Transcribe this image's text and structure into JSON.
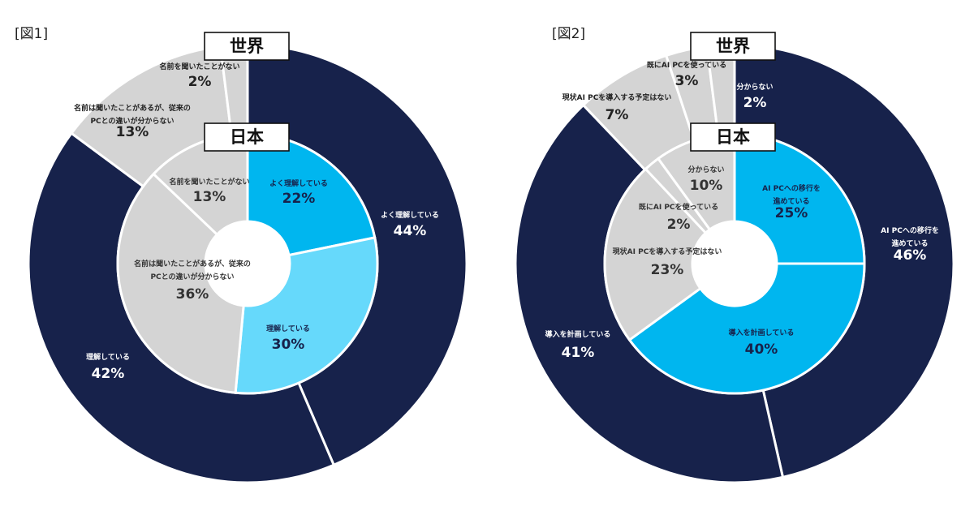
{
  "chart_data": [
    {
      "type": "pie",
      "figure_label": "[図1]",
      "outer_ring_label": "世界",
      "inner_ring_label": "日本",
      "series": [
        {
          "name": "世界",
          "categories": [
            "よく理解している",
            "理解している",
            "名前は聞いたことがあるが、従来のPCとの違いが分からない",
            "名前を聞いたことがない"
          ],
          "values": [
            44,
            42,
            13,
            2
          ],
          "value_labels": [
            "44%",
            "42%",
            "13%",
            "2%"
          ],
          "colors": [
            "#17224b",
            "#17224b",
            "#d4d4d4",
            "#d4d4d4"
          ]
        },
        {
          "name": "日本",
          "categories": [
            "よく理解している",
            "理解している",
            "名前は聞いたことがあるが、従来のPCとの違いが分からない",
            "名前を聞いたことがない"
          ],
          "values": [
            22,
            30,
            36,
            13
          ],
          "value_labels": [
            "22%",
            "30%",
            "36%",
            "13%"
          ],
          "colors": [
            "#00b6ef",
            "#66d9fb",
            "#d4d4d4",
            "#d4d4d4"
          ]
        }
      ]
    },
    {
      "type": "pie",
      "figure_label": "[図2]",
      "outer_ring_label": "世界",
      "inner_ring_label": "日本",
      "series": [
        {
          "name": "世界",
          "categories": [
            "AI PCへの移行を進めている",
            "導入を計画している",
            "現状AI PCを導入する予定はない",
            "既にAI PCを使っている",
            "分からない"
          ],
          "values": [
            46,
            41,
            7,
            3,
            2
          ],
          "value_labels": [
            "46%",
            "41%",
            "7%",
            "3%",
            "2%"
          ],
          "colors": [
            "#17224b",
            "#17224b",
            "#d4d4d4",
            "#d4d4d4",
            "#d4d4d4"
          ]
        },
        {
          "name": "日本",
          "categories": [
            "AI PCへの移行を進めている",
            "導入を計画している",
            "現状AI PCを導入する予定はない",
            "既にAI PCを使っている",
            "分からない"
          ],
          "values": [
            25,
            40,
            23,
            2,
            10
          ],
          "value_labels": [
            "25%",
            "40%",
            "23%",
            "2%",
            "10%"
          ],
          "colors": [
            "#00b6ef",
            "#00b6ef",
            "#d4d4d4",
            "#d4d4d4",
            "#d4d4d4"
          ]
        }
      ]
    }
  ]
}
